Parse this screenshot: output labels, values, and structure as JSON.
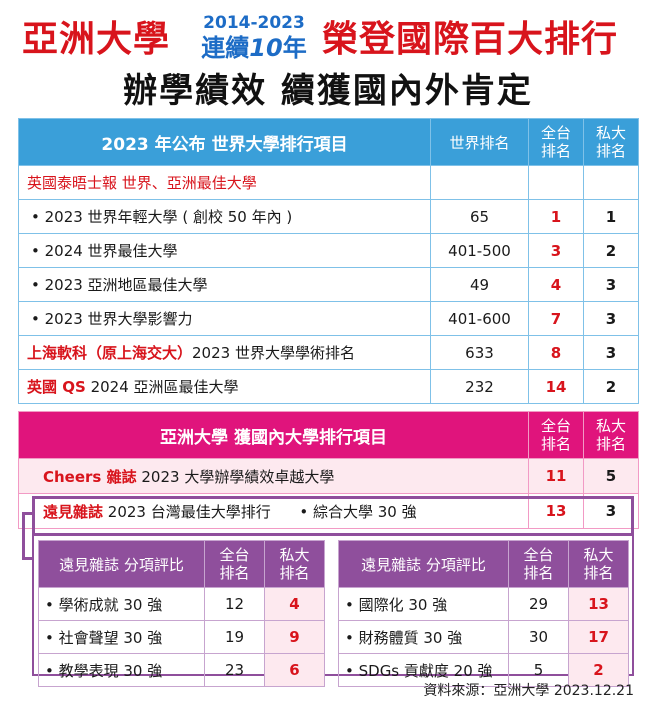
{
  "header": {
    "left": "亞洲大學",
    "years": "2014-2023",
    "continuous_pre": "連續",
    "continuous_num": "10",
    "continuous_post": "年",
    "right": "榮登國際百大排行",
    "subtitle": "辦學績效 續獲國內外肯定"
  },
  "world": {
    "title": "2023 年公布 世界大學排行項目",
    "col_world": "世界排名",
    "col_tw_1": "全台",
    "col_tw_2": "排名",
    "col_priv_1": "私大",
    "col_priv_2": "排名",
    "group_label": "英國泰晤士報 世界、亞洲最佳大學",
    "rows": [
      {
        "label": "• 2023 世界年輕大學 ( 創校 50 年內 )",
        "world": "65",
        "tw": "1",
        "priv": "1"
      },
      {
        "label": "• 2024 世界最佳大學",
        "world": "401-500",
        "tw": "3",
        "priv": "2"
      },
      {
        "label": "• 2023 亞洲地區最佳大學",
        "world": "49",
        "tw": "4",
        "priv": "3"
      },
      {
        "label": "• 2023 世界大學影響力",
        "world": "401-600",
        "tw": "7",
        "priv": "3"
      }
    ],
    "sjtu": {
      "red": "上海軟科（原上海交大）",
      "rest": "2023 世界大學學術排名",
      "world": "633",
      "tw": "8",
      "priv": "3"
    },
    "qs": {
      "red": "英國 QS",
      "rest": "2024 亞洲區最佳大學",
      "world": "232",
      "tw": "14",
      "priv": "2"
    }
  },
  "domestic": {
    "title": "亞洲大學 獲國內大學排行項目",
    "col_tw_1": "全台",
    "col_tw_2": "排名",
    "col_priv_1": "私大",
    "col_priv_2": "排名",
    "cheers": {
      "red": "Cheers 雜誌",
      "rest": "2023 大學辦學績效卓越大學",
      "tw": "11",
      "priv": "5"
    },
    "yuanjian": {
      "red": "遠見雜誌",
      "rest": "2023 台灣最佳大學排行",
      "sub": "•  綜合大學 30 強",
      "tw": "13",
      "priv": "3"
    }
  },
  "sub_left": {
    "title": "遠見雜誌 分項評比",
    "col_tw_1": "全台",
    "col_tw_2": "排名",
    "col_priv_1": "私大",
    "col_priv_2": "排名",
    "rows": [
      {
        "label": "•  學術成就 30 強",
        "tw": "12",
        "priv": "4"
      },
      {
        "label": "•  社會聲望 30 強",
        "tw": "19",
        "priv": "9"
      },
      {
        "label": "•  教學表現 30 強",
        "tw": "23",
        "priv": "6"
      }
    ]
  },
  "sub_right": {
    "title": "遠見雜誌 分項評比",
    "col_tw_1": "全台",
    "col_tw_2": "排名",
    "col_priv_1": "私大",
    "col_priv_2": "排名",
    "rows": [
      {
        "label": "•  國際化 30 強",
        "tw": "29",
        "priv": "13"
      },
      {
        "label": "•  財務體質 30 強",
        "tw": "30",
        "priv": "17"
      },
      {
        "label": "•  SDGs 貢獻度 20 強",
        "tw": "5",
        "priv": "2"
      }
    ]
  },
  "source": "資料來源：亞洲大學   2023.12.21",
  "colors": {
    "red": "#d8141c",
    "blue_header": "#3a9fd9",
    "pink_header": "#e0147c",
    "purple": "#8f4f9c",
    "blue_accent": "#1d6cc6"
  }
}
